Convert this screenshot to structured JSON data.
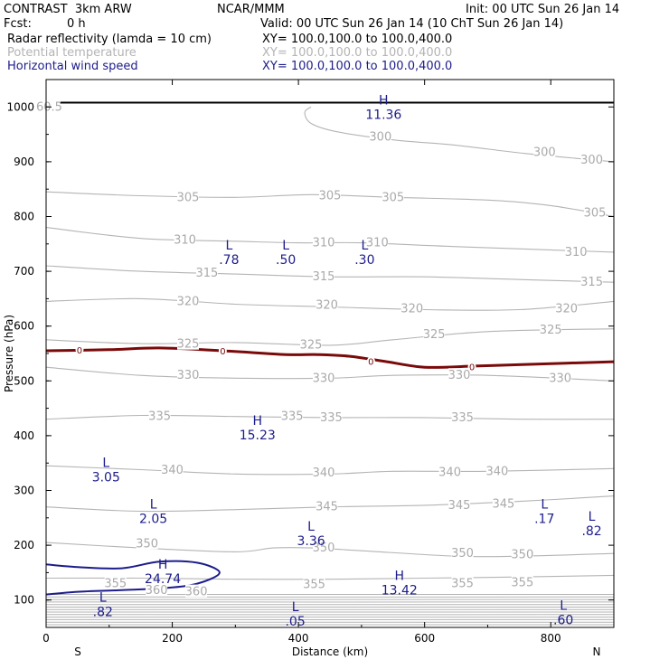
{
  "header": {
    "model": "CONTRAST  3km ARW",
    "center": "NCAR/MMM",
    "init": "Init: 00 UTC Sun 26 Jan 14",
    "fcst_label": "Fcst:",
    "fcst_value": "0 h",
    "valid": "Valid: 00 UTC Sun 26 Jan 14 (10 ChT Sun 26 Jan 14)",
    "fields": [
      {
        "name": "Radar reflectivity (lamda = 10 cm)",
        "xy": "XY= 100.0,100.0 to 100.0,400.0",
        "color": "#000000"
      },
      {
        "name": "Potential temperature",
        "xy": "XY= 100.0,100.0 to 100.0,400.0",
        "color": "#b4b4b4"
      },
      {
        "name": "Horizontal wind speed",
        "xy": "XY= 100.0,100.0 to 100.0,400.0",
        "color": "#1c1c8c"
      }
    ]
  },
  "chart_data": {
    "type": "cross-section contour",
    "xlabel": "Distance (km)",
    "ylabel": "Pressure (hPa)",
    "xlim": [
      0,
      900
    ],
    "ylim": [
      1050,
      50
    ],
    "x_ticks": [
      "0",
      "200",
      "400",
      "600",
      "800"
    ],
    "x_tick_values": [
      0,
      200,
      400,
      600,
      800
    ],
    "y_ticks": [
      "100",
      "200",
      "300",
      "400",
      "500",
      "600",
      "700",
      "800",
      "900",
      "1000"
    ],
    "y_tick_values": [
      100,
      200,
      300,
      400,
      500,
      600,
      700,
      800,
      900,
      1000
    ],
    "end_labels": {
      "left": "S",
      "right": "N"
    },
    "colors": {
      "theta": "#b4b4b4",
      "wind": "#1c1c8c",
      "zero_line": "#7a0a0a",
      "ground": "#000000"
    },
    "theta_isolines": [
      {
        "value": "355",
        "points": [
          [
            0,
            140
          ],
          [
            150,
            140
          ],
          [
            300,
            138
          ],
          [
            450,
            138
          ],
          [
            600,
            140
          ],
          [
            750,
            142
          ],
          [
            900,
            145
          ]
        ]
      },
      {
        "value": "350",
        "points": [
          [
            0,
            205
          ],
          [
            150,
            195
          ],
          [
            300,
            188
          ],
          [
            360,
            195
          ],
          [
            420,
            195
          ],
          [
            500,
            190
          ],
          [
            650,
            180
          ],
          [
            750,
            180
          ],
          [
            900,
            185
          ]
        ]
      },
      {
        "value": "345",
        "points": [
          [
            0,
            270
          ],
          [
            150,
            262
          ],
          [
            300,
            265
          ],
          [
            450,
            270
          ],
          [
            600,
            273
          ],
          [
            750,
            280
          ],
          [
            900,
            290
          ]
        ]
      },
      {
        "value": "340",
        "points": [
          [
            0,
            345
          ],
          [
            150,
            338
          ],
          [
            300,
            330
          ],
          [
            450,
            330
          ],
          [
            550,
            335
          ],
          [
            700,
            335
          ],
          [
            900,
            340
          ]
        ]
      },
      {
        "value": "335",
        "points": [
          [
            0,
            430
          ],
          [
            150,
            437
          ],
          [
            300,
            435
          ],
          [
            450,
            433
          ],
          [
            600,
            433
          ],
          [
            750,
            430
          ],
          [
            900,
            430
          ]
        ]
      },
      {
        "value": "330",
        "points": [
          [
            0,
            525
          ],
          [
            150,
            510
          ],
          [
            300,
            505
          ],
          [
            450,
            505
          ],
          [
            550,
            510
          ],
          [
            700,
            510
          ],
          [
            900,
            500
          ]
        ]
      },
      {
        "value": "325",
        "points": [
          [
            0,
            575
          ],
          [
            150,
            568
          ],
          [
            300,
            570
          ],
          [
            450,
            565
          ],
          [
            550,
            575
          ],
          [
            700,
            590
          ],
          [
            900,
            595
          ]
        ]
      },
      {
        "value": "320",
        "points": [
          [
            0,
            645
          ],
          [
            150,
            650
          ],
          [
            300,
            640
          ],
          [
            450,
            635
          ],
          [
            600,
            630
          ],
          [
            750,
            630
          ],
          [
            900,
            645
          ]
        ]
      },
      {
        "value": "315",
        "points": [
          [
            0,
            710
          ],
          [
            150,
            700
          ],
          [
            300,
            695
          ],
          [
            450,
            690
          ],
          [
            600,
            690
          ],
          [
            750,
            685
          ],
          [
            900,
            680
          ]
        ]
      },
      {
        "value": "310",
        "points": [
          [
            0,
            780
          ],
          [
            150,
            760
          ],
          [
            300,
            755
          ],
          [
            400,
            752
          ],
          [
            500,
            752
          ],
          [
            650,
            745
          ],
          [
            900,
            735
          ]
        ]
      },
      {
        "value": "305",
        "points": [
          [
            0,
            845
          ],
          [
            150,
            838
          ],
          [
            300,
            835
          ],
          [
            420,
            840
          ],
          [
            550,
            835
          ],
          [
            700,
            830
          ],
          [
            800,
            820
          ],
          [
            900,
            800
          ]
        ]
      },
      {
        "value": "300",
        "points": [
          [
            420,
            1000
          ],
          [
            410,
            990
          ],
          [
            420,
            970
          ],
          [
            460,
            955
          ],
          [
            550,
            940
          ],
          [
            650,
            930
          ],
          [
            760,
            915
          ],
          [
            900,
            900
          ]
        ]
      }
    ],
    "theta_labels": [
      {
        "text": "360",
        "x": 175,
        "p": 118
      },
      {
        "text": "360",
        "x": 238,
        "p": 115
      },
      {
        "text": "355",
        "x": 110,
        "p": 130
      },
      {
        "text": "355",
        "x": 425,
        "p": 128
      },
      {
        "text": "355",
        "x": 660,
        "p": 130
      },
      {
        "text": "355",
        "x": 755,
        "p": 132
      },
      {
        "text": "350",
        "x": 160,
        "p": 203
      },
      {
        "text": "350",
        "x": 440,
        "p": 195
      },
      {
        "text": "350",
        "x": 660,
        "p": 185
      },
      {
        "text": "350",
        "x": 755,
        "p": 183
      },
      {
        "text": "345",
        "x": 445,
        "p": 270
      },
      {
        "text": "345",
        "x": 655,
        "p": 273
      },
      {
        "text": "345",
        "x": 725,
        "p": 275
      },
      {
        "text": "340",
        "x": 200,
        "p": 337
      },
      {
        "text": "340",
        "x": 440,
        "p": 332
      },
      {
        "text": "340",
        "x": 640,
        "p": 333
      },
      {
        "text": "340",
        "x": 715,
        "p": 335
      },
      {
        "text": "335",
        "x": 180,
        "p": 435
      },
      {
        "text": "335",
        "x": 390,
        "p": 435
      },
      {
        "text": "335",
        "x": 452,
        "p": 433
      },
      {
        "text": "335",
        "x": 660,
        "p": 433
      },
      {
        "text": "330",
        "x": 225,
        "p": 510
      },
      {
        "text": "330",
        "x": 440,
        "p": 505
      },
      {
        "text": "330",
        "x": 655,
        "p": 510
      },
      {
        "text": "330",
        "x": 815,
        "p": 505
      },
      {
        "text": "325",
        "x": 225,
        "p": 567
      },
      {
        "text": "325",
        "x": 420,
        "p": 566
      },
      {
        "text": "325",
        "x": 615,
        "p": 585
      },
      {
        "text": "325",
        "x": 800,
        "p": 593
      },
      {
        "text": "320",
        "x": 225,
        "p": 645
      },
      {
        "text": "320",
        "x": 445,
        "p": 638
      },
      {
        "text": "320",
        "x": 580,
        "p": 632
      },
      {
        "text": "320",
        "x": 825,
        "p": 632
      },
      {
        "text": "315",
        "x": 255,
        "p": 697
      },
      {
        "text": "315",
        "x": 440,
        "p": 690
      },
      {
        "text": "315",
        "x": 865,
        "p": 680
      },
      {
        "text": "310",
        "x": 220,
        "p": 757
      },
      {
        "text": "310",
        "x": 440,
        "p": 752
      },
      {
        "text": "310",
        "x": 525,
        "p": 752
      },
      {
        "text": "310",
        "x": 840,
        "p": 735
      },
      {
        "text": "305",
        "x": 225,
        "p": 835
      },
      {
        "text": "305",
        "x": 450,
        "p": 838
      },
      {
        "text": "305",
        "x": 550,
        "p": 835
      },
      {
        "text": "305",
        "x": 870,
        "p": 807
      },
      {
        "text": "300",
        "x": 530,
        "p": 945
      },
      {
        "text": "300",
        "x": 790,
        "p": 917
      },
      {
        "text": "300",
        "x": 865,
        "p": 903
      },
      {
        "text": "60.5",
        "x": 5,
        "p": 1000
      }
    ],
    "zero_line": {
      "label": "0",
      "points": [
        [
          0,
          555
        ],
        [
          100,
          557
        ],
        [
          180,
          560
        ],
        [
          280,
          555
        ],
        [
          380,
          548
        ],
        [
          430,
          548
        ],
        [
          480,
          545
        ],
        [
          540,
          535
        ],
        [
          600,
          525
        ],
        [
          680,
          527
        ],
        [
          760,
          530
        ],
        [
          900,
          535
        ]
      ],
      "label_positions": [
        [
          53,
          557
        ],
        [
          280,
          555
        ],
        [
          515,
          536
        ],
        [
          675,
          526
        ]
      ]
    },
    "wind_contours": [
      {
        "points": [
          [
            0,
            110
          ],
          [
            50,
            115
          ],
          [
            120,
            118
          ],
          [
            190,
            122
          ],
          [
            240,
            130
          ],
          [
            275,
            150
          ],
          [
            240,
            168
          ],
          [
            180,
            170
          ],
          [
            120,
            158
          ],
          [
            50,
            160
          ],
          [
            0,
            165
          ]
        ]
      }
    ],
    "extrema": [
      {
        "type": "L",
        "value": ".82",
        "x": 90,
        "p": 92
      },
      {
        "type": "L",
        "value": ".05",
        "x": 395,
        "p": 75
      },
      {
        "type": "L",
        "value": ".60",
        "x": 820,
        "p": 77
      },
      {
        "type": "H",
        "value": "24.74",
        "x": 185,
        "p": 152
      },
      {
        "type": "H",
        "value": "13.42",
        "x": 560,
        "p": 132
      },
      {
        "type": "L",
        "value": "3.36",
        "x": 420,
        "p": 222
      },
      {
        "type": "L",
        "value": "2.05",
        "x": 170,
        "p": 262
      },
      {
        "type": "L",
        "value": ".17",
        "x": 790,
        "p": 262
      },
      {
        "type": "L",
        "value": ".82",
        "x": 865,
        "p": 240
      },
      {
        "type": "L",
        "value": "3.05",
        "x": 95,
        "p": 338
      },
      {
        "type": "H",
        "value": "15.23",
        "x": 335,
        "p": 415
      },
      {
        "type": "L",
        "value": ".78",
        "x": 290,
        "p": 735
      },
      {
        "type": "L",
        "value": ".50",
        "x": 380,
        "p": 735
      },
      {
        "type": "L",
        "value": ".30",
        "x": 505,
        "p": 735
      },
      {
        "type": "H",
        "value": "11.36",
        "x": 535,
        "p": 1000
      }
    ],
    "ground_pressure": 1008
  }
}
